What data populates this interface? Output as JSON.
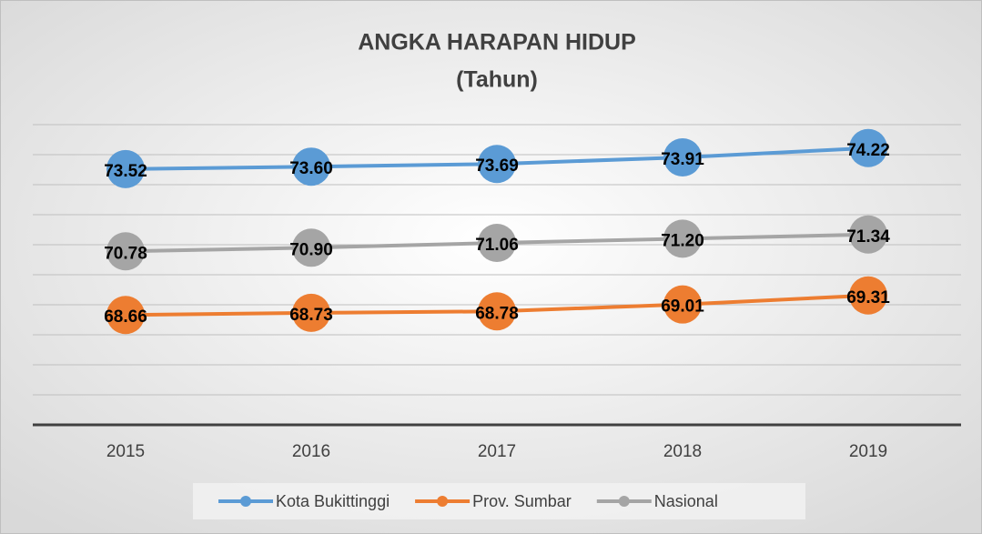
{
  "chart_data": {
    "type": "line",
    "title": "ANGKA HARAPAN HIDUP",
    "subtitle": "(Tahun)",
    "categories": [
      "2015",
      "2016",
      "2017",
      "2018",
      "2019"
    ],
    "series": [
      {
        "name": "Kota Bukittinggi",
        "color": "#5b9bd5",
        "values": [
          73.52,
          73.6,
          73.69,
          73.91,
          74.22
        ],
        "value_labels": [
          "73.52",
          "73.60",
          "73.69",
          "73.91",
          "74.22"
        ]
      },
      {
        "name": "Prov. Sumbar",
        "color": "#ed7d31",
        "values": [
          68.66,
          68.73,
          68.78,
          69.01,
          69.31
        ],
        "value_labels": [
          "68.66",
          "68.73",
          "68.78",
          "69.01",
          "69.31"
        ]
      },
      {
        "name": "Nasional",
        "color": "#a5a5a5",
        "values": [
          70.78,
          70.9,
          71.06,
          71.2,
          71.34
        ],
        "value_labels": [
          "70.78",
          "70.90",
          "71.06",
          "71.20",
          "71.34"
        ]
      }
    ],
    "ylim": [
      65,
      75
    ],
    "yticks": [
      65,
      66,
      67,
      68,
      69,
      70,
      71,
      72,
      73,
      74,
      75
    ],
    "ytick_labels": false,
    "grid": true,
    "legend": "bottom"
  }
}
